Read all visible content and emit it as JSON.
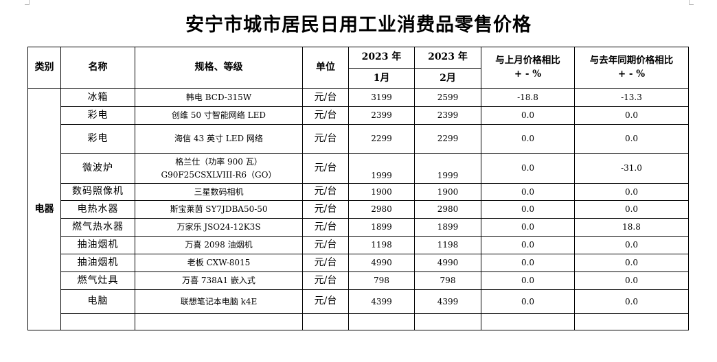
{
  "title": "安宁市城市居民日用工业消费品零售价格",
  "headers": {
    "category": "类别",
    "name": "名称",
    "spec": "规格、等级",
    "unit": "单位",
    "year1": "2023 年",
    "year2": "2023 年",
    "month1": "1月",
    "month2": "2月",
    "mom": "与上月价格相比",
    "yoy": "与去年同期价格相比",
    "pct": "+ - %"
  },
  "category": "电器",
  "rows": [
    {
      "name": "冰箱",
      "spec": "韩电 BCD-315W",
      "unit": "元/台",
      "jan": "3199",
      "feb": "2599",
      "mom": "-18.8",
      "yoy": "-13.3"
    },
    {
      "name": "彩电",
      "spec": "创维 50 寸智能网络 LED",
      "unit": "元/台",
      "jan": "2399",
      "feb": "2399",
      "mom": "0.0",
      "yoy": "0.0"
    },
    {
      "name": "彩电",
      "spec": "海信 43 英寸 LED 网络",
      "unit": "元/台",
      "jan": "2299",
      "feb": "2299",
      "mom": "0.0",
      "yoy": "0.0"
    },
    {
      "name": "微波炉",
      "spec": "格兰仕（功率 900 瓦）",
      "spec2": "G90F25CSXLVIII-R6（GO）",
      "unit": "元/台",
      "jan": "1999",
      "feb": "1999",
      "mom": "0.0",
      "yoy": "-31.0"
    },
    {
      "name": "数码照像机",
      "spec": "三星数码相机",
      "unit": "元/台",
      "jan": "1900",
      "feb": "1900",
      "mom": "0.0",
      "yoy": "0.0"
    },
    {
      "name": "电热水器",
      "spec": "斯宝莱茵 SY7JDBA50-50",
      "unit": "元/台",
      "jan": "2980",
      "feb": "2980",
      "mom": "0.0",
      "yoy": "0.0"
    },
    {
      "name": "燃气热水器",
      "spec": "万家乐 JSO24-12K3S",
      "unit": "元/台",
      "jan": "1899",
      "feb": "1899",
      "mom": "0.0",
      "yoy": "18.8"
    },
    {
      "name": "抽油烟机",
      "spec": "万喜 2098 油烟机",
      "unit": "元/台",
      "jan": "1198",
      "feb": "1198",
      "mom": "0.0",
      "yoy": "0.0"
    },
    {
      "name": "抽油烟机",
      "spec": "老板 CXW-8015",
      "unit": "元/台",
      "jan": "4990",
      "feb": "4990",
      "mom": "0.0",
      "yoy": "0.0"
    },
    {
      "name": "燃气灶具",
      "spec": "万喜 738A1 嵌入式",
      "unit": "元/台",
      "jan": "798",
      "feb": "798",
      "mom": "0.0",
      "yoy": "0.0"
    },
    {
      "name": "电脑",
      "spec": "联想笔记本电脑 k4E",
      "unit": "元/台",
      "jan": "4399",
      "feb": "4399",
      "mom": "0.0",
      "yoy": "0.0"
    }
  ]
}
